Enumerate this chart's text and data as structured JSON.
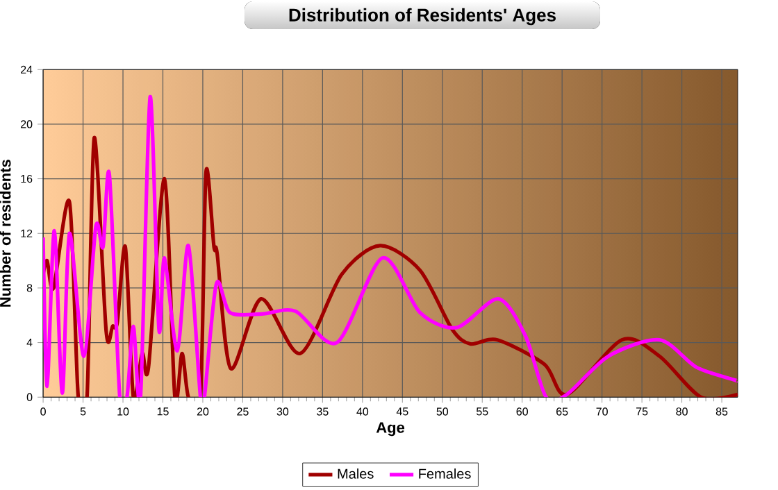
{
  "chart_data": {
    "type": "line",
    "title": "Distribution of Residents' Ages",
    "xlabel": "Age",
    "ylabel": "Number of residents",
    "xlim": [
      0,
      87
    ],
    "ylim": [
      0,
      24
    ],
    "xticks": [
      0,
      5,
      10,
      15,
      20,
      25,
      30,
      35,
      40,
      45,
      50,
      55,
      60,
      65,
      70,
      75,
      80,
      85
    ],
    "yticks": [
      0,
      4,
      8,
      12,
      16,
      20,
      24
    ],
    "grid": true,
    "legend": "bottom",
    "marker": "none",
    "line_style": "solid",
    "series": [
      {
        "name": "Males",
        "color": "#a00000",
        "x": [
          0,
          0.5,
          1.3,
          3.3,
          4.4,
          5.5,
          6.4,
          7.9,
          8.7,
          9.3,
          10.3,
          11.3,
          12.4,
          13.2,
          15.2,
          16.5,
          17.4,
          18.2,
          19.7,
          20.4,
          21.4,
          21.8,
          23.5,
          27.3,
          32.2,
          37.4,
          42.2,
          47.2,
          51.2,
          53.5,
          56.9,
          62.8,
          65.6,
          72.5,
          77.2,
          82.4,
          87
        ],
        "values": [
          9,
          10,
          8,
          14.3,
          0,
          0,
          19,
          4.8,
          5.2,
          5.5,
          11,
          0,
          3.2,
          2.2,
          16,
          0,
          3.2,
          0,
          0,
          16.5,
          11,
          10.5,
          2.1,
          7.2,
          3.2,
          9,
          11.1,
          9.3,
          5,
          3.9,
          4.2,
          2.4,
          0.2,
          4.2,
          3,
          0,
          0.2
        ]
      },
      {
        "name": "Females",
        "color": "#ff00ff",
        "x": [
          0,
          0.5,
          1.4,
          2.4,
          3.3,
          5.1,
          6.6,
          7.5,
          8.3,
          9.6,
          10.5,
          11.3,
          12.2,
          13.4,
          14.5,
          15.2,
          16.8,
          18.2,
          19.7,
          20.2,
          21.7,
          23.4,
          27.4,
          31.6,
          36.8,
          42.5,
          47.2,
          51.8,
          57,
          60.4,
          63,
          65.6,
          70.8,
          77.2,
          81.8,
          86.4,
          87
        ],
        "values": [
          11.7,
          0.8,
          12.2,
          0.3,
          12,
          3,
          12.5,
          11,
          16.3,
          0,
          0,
          5.2,
          0,
          22,
          5,
          10.2,
          3.4,
          11.1,
          0,
          0,
          8.3,
          6.2,
          6.1,
          6.3,
          4,
          10.2,
          6.2,
          5.1,
          7.2,
          4.5,
          0,
          0.2,
          3,
          4.2,
          2.2,
          1.3,
          1.2
        ]
      }
    ]
  }
}
